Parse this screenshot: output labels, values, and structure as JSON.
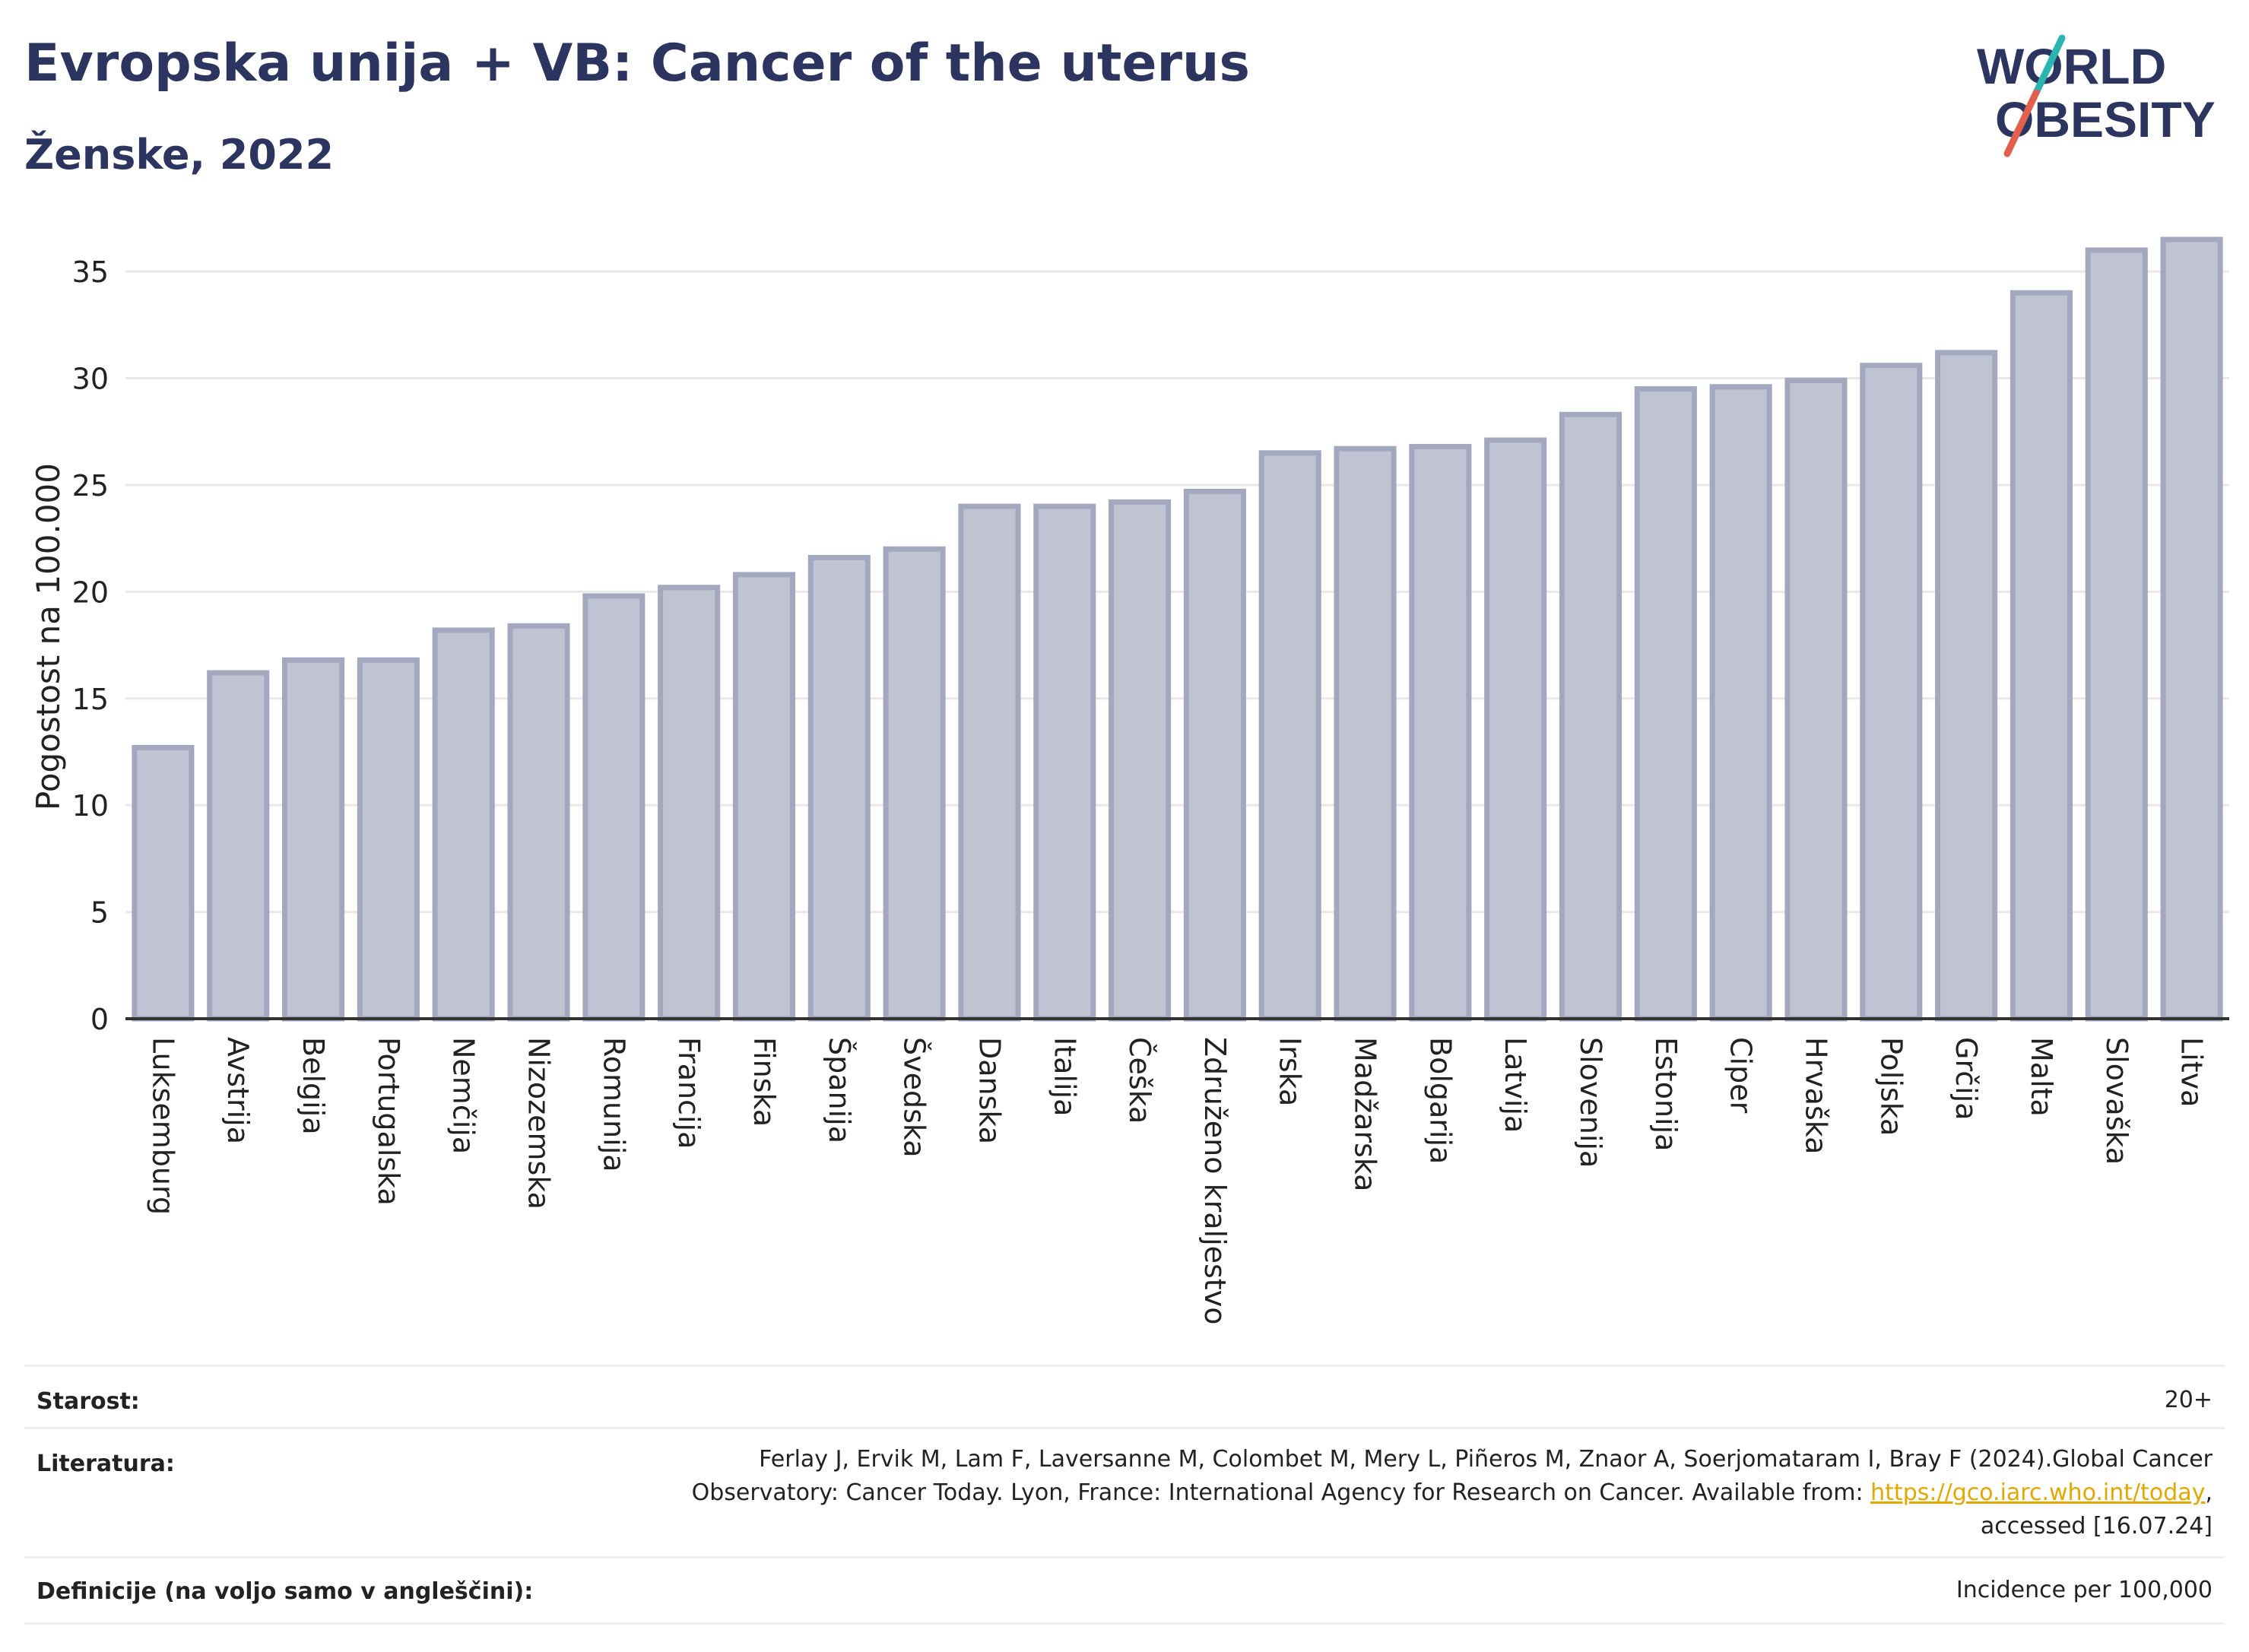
{
  "header": {
    "title": "Evropska unija + VB: Cancer of the uterus",
    "subtitle": "Ženske, 2022"
  },
  "logo": {
    "line1": "WORLD",
    "line2": "OBESITY",
    "accent_colors": [
      "#2bb5b2",
      "#e3604e"
    ],
    "text_color": "#2c3560"
  },
  "chart_data": {
    "type": "bar",
    "ylabel": "Pogostost na 100.000",
    "xlabel": "",
    "ylim": [
      0,
      36.5
    ],
    "yticks": [
      0,
      5,
      10,
      15,
      20,
      25,
      30,
      35
    ],
    "grid": true,
    "bar_color": "#c0c3d2",
    "bar_edge_color": "#a3a8bf",
    "categories": [
      "Luksemburg",
      "Avstrija",
      "Belgija",
      "Portugalska",
      "Nemčija",
      "Nizozemska",
      "Romunija",
      "Francija",
      "Finska",
      "Španija",
      "Švedska",
      "Danska",
      "Italija",
      "Češka",
      "Združeno kraljestvo",
      "Irska",
      "Madžarska",
      "Bolgarija",
      "Latvija",
      "Slovenija",
      "Estonija",
      "Ciper",
      "Hrvaška",
      "Poljska",
      "Grčija",
      "Malta",
      "Slovaška",
      "Litva"
    ],
    "values": [
      12.7,
      16.2,
      16.8,
      16.8,
      18.2,
      18.4,
      19.8,
      20.2,
      20.8,
      21.6,
      22.0,
      24.0,
      24.0,
      24.2,
      24.7,
      26.5,
      26.7,
      26.8,
      27.1,
      28.3,
      29.5,
      29.6,
      29.9,
      30.6,
      31.2,
      34.0,
      36.0,
      36.5
    ]
  },
  "info": {
    "age_label": "Starost:",
    "age_value": "20+",
    "references_label": "Literatura:",
    "references_text_1": "Ferlay J, Ervik M, Lam F, Laversanne M, Colombet M, Mery L, Piñeros M, Znaor A, Soerjomataram I, Bray F (2024).Global Cancer",
    "references_text_2": "Observatory: Cancer Today. Lyon, France: International Agency for Research on Cancer. Available from: ",
    "references_link": "https://gco.iarc.who.int/today",
    "references_text_3": ",",
    "references_text_4": "accessed [16.07.24]",
    "definitions_label": "Definicije (na voljo samo v angleščini):",
    "definitions_value": "Incidence per 100,000"
  }
}
